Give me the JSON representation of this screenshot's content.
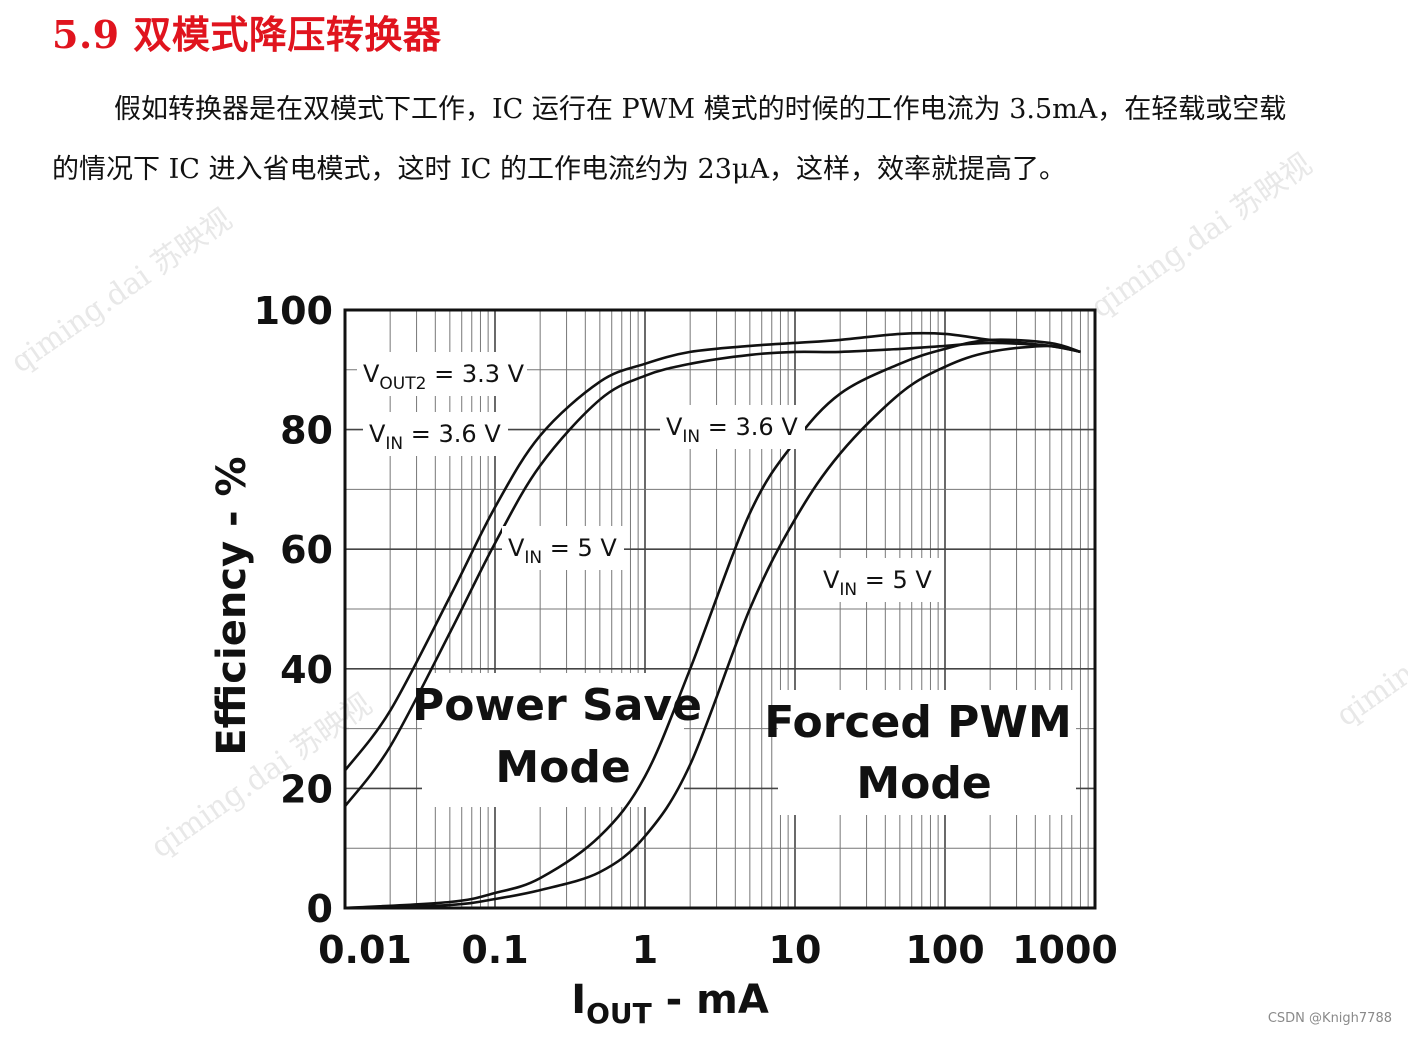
{
  "section": {
    "heading": "5.9 双模式降压转换器",
    "paragraph": "假如转换器是在双模式下工作，IC 运行在 PWM 模式的时候的工作电流为 3.5mA，在轻载或空载的情况下 IC 进入省电模式，这时 IC 的工作电流约为 23μA，这样，效率就提高了。"
  },
  "watermarks": [
    "qiming.dai 苏映视",
    "qiming.dai 苏映视",
    "qiming.dai 苏映视",
    "qiming"
  ],
  "credit": "CSDN @Knigh7788",
  "chart_data": {
    "type": "line",
    "xlabel_main": "I",
    "xlabel_sub": "OUT",
    "xlabel_tail": " - mA",
    "ylabel": "Efficiency - %",
    "xscale": "log",
    "xlim": [
      0.01,
      1000
    ],
    "ylim": [
      0,
      100
    ],
    "x_ticks": [
      "0.01",
      "0.1",
      "1",
      "10",
      "100",
      "1000"
    ],
    "y_ticks": [
      "0",
      "20",
      "40",
      "60",
      "80",
      "100"
    ],
    "grid": true,
    "annotations": {
      "vout": {
        "main": "V",
        "sub": "OUT2",
        "tail": " = 3.3 V"
      },
      "ps_vin36": {
        "main": "V",
        "sub": "IN",
        "tail": " = 3.6 V"
      },
      "ps_vin5": {
        "main": "V",
        "sub": "IN",
        "tail": " = 5 V"
      },
      "pwm_vin36": {
        "main": "V",
        "sub": "IN",
        "tail": " = 3.6 V"
      },
      "pwm_vin5": {
        "main": "V",
        "sub": "IN",
        "tail": " = 5 V"
      }
    },
    "mode_labels": {
      "power_save": [
        "Power Save",
        "Mode"
      ],
      "forced_pwm": [
        "Forced PWM",
        "Mode"
      ]
    },
    "series": [
      {
        "mode": "power-save",
        "vin": 3.6,
        "x": [
          0.01,
          0.02,
          0.05,
          0.1,
          0.2,
          0.5,
          1,
          2,
          5,
          10,
          20,
          50,
          100,
          200,
          500,
          800
        ],
        "y": [
          23,
          33,
          52,
          67,
          79,
          88,
          91,
          93,
          94,
          94.5,
          95,
          96,
          96,
          95,
          94,
          93
        ]
      },
      {
        "mode": "power-save",
        "vin": 5,
        "x": [
          0.01,
          0.02,
          0.05,
          0.1,
          0.2,
          0.5,
          1,
          2,
          5,
          10,
          20,
          50,
          100,
          200,
          500,
          800
        ],
        "y": [
          17,
          27,
          46,
          61,
          74,
          85,
          89,
          91,
          92.5,
          93,
          93,
          93.5,
          94,
          94.5,
          94,
          93
        ]
      },
      {
        "mode": "forced-pwm",
        "vin": 3.6,
        "x": [
          0.01,
          0.05,
          0.1,
          0.2,
          0.5,
          1,
          2,
          5,
          10,
          20,
          50,
          100,
          200,
          500,
          800
        ],
        "y": [
          0,
          1,
          2.5,
          5,
          12,
          22,
          40,
          66,
          78,
          86,
          91,
          93.5,
          95,
          94.5,
          93
        ]
      },
      {
        "mode": "forced-pwm",
        "vin": 5,
        "x": [
          0.01,
          0.05,
          0.1,
          0.2,
          0.5,
          1,
          2,
          5,
          10,
          20,
          50,
          100,
          200,
          500,
          800
        ],
        "y": [
          0,
          0.5,
          1.5,
          3,
          6,
          12,
          24,
          50,
          65,
          76,
          86,
          90.5,
          93,
          94,
          93
        ]
      }
    ]
  }
}
